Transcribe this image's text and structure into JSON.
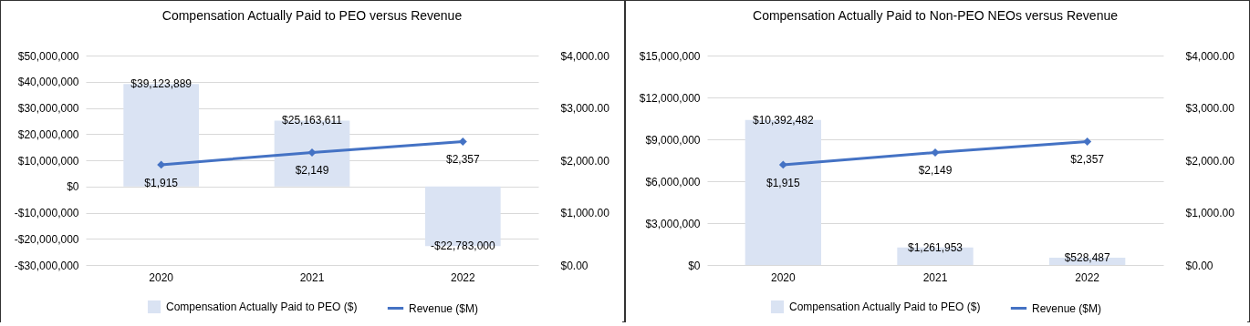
{
  "chart_data": [
    {
      "type": "bar",
      "title": "Compensation Actually Paid to PEO versus Revenue",
      "categories": [
        "2020",
        "2021",
        "2022"
      ],
      "series": [
        {
          "name": "Compensation Actually Paid to PEO ($)",
          "color": "#dae3f3",
          "values": [
            39123889,
            25163611,
            -22783000
          ],
          "value_labels": [
            "$39,123,889",
            "$25,163,611",
            "-$22,783,000"
          ]
        },
        {
          "name": "Revenue ($M)",
          "type": "line",
          "axis": "y2",
          "color": "#4472c4",
          "values": [
            1915,
            2149,
            2357
          ],
          "value_labels": [
            "$1,915",
            "$2,149",
            "$2,357"
          ]
        }
      ],
      "ylim": [
        -30000000,
        50000000
      ],
      "yticks": [
        {
          "value": -30000000,
          "label": "-$30,000,000"
        },
        {
          "value": -20000000,
          "label": "-$20,000,000"
        },
        {
          "value": -10000000,
          "label": "-$10,000,000"
        },
        {
          "value": 0,
          "label": "$0"
        },
        {
          "value": 10000000,
          "label": "$10,000,000"
        },
        {
          "value": 20000000,
          "label": "$20,000,000"
        },
        {
          "value": 30000000,
          "label": "$30,000,000"
        },
        {
          "value": 40000000,
          "label": "$40,000,000"
        },
        {
          "value": 50000000,
          "label": "$50,000,000"
        }
      ],
      "y2lim": [
        0,
        4000
      ],
      "y2ticks": [
        {
          "value": 0,
          "label": "$0.00"
        },
        {
          "value": 1000,
          "label": "$1,000.00"
        },
        {
          "value": 2000,
          "label": "$2,000.00"
        },
        {
          "value": 3000,
          "label": "$3,000.00"
        },
        {
          "value": 4000,
          "label": "$4,000.00"
        }
      ],
      "grid": "y",
      "legend": "bottom",
      "marker": "diamond"
    },
    {
      "type": "bar",
      "title": "Compensation Actually Paid to Non-PEO NEOs versus Revenue",
      "categories": [
        "2020",
        "2021",
        "2022"
      ],
      "series": [
        {
          "name": "Compensation Actually Paid to PEO ($)",
          "color": "#dae3f3",
          "values": [
            10392482,
            1261953,
            528487
          ],
          "value_labels": [
            "$10,392,482",
            "$1,261,953",
            "$528,487"
          ]
        },
        {
          "name": "Revenue ($M)",
          "type": "line",
          "axis": "y2",
          "color": "#4472c4",
          "values": [
            1915,
            2149,
            2357
          ],
          "value_labels": [
            "$1,915",
            "$2,149",
            "$2,357"
          ]
        }
      ],
      "ylim": [
        0,
        15000000
      ],
      "yticks": [
        {
          "value": 0,
          "label": "$0"
        },
        {
          "value": 3000000,
          "label": "$3,000,000"
        },
        {
          "value": 6000000,
          "label": "$6,000,000"
        },
        {
          "value": 9000000,
          "label": "$9,000,000"
        },
        {
          "value": 12000000,
          "label": "$12,000,000"
        },
        {
          "value": 15000000,
          "label": "$15,000,000"
        }
      ],
      "y2lim": [
        0,
        4000
      ],
      "y2ticks": [
        {
          "value": 0,
          "label": "$0.00"
        },
        {
          "value": 1000,
          "label": "$1,000.00"
        },
        {
          "value": 2000,
          "label": "$2,000.00"
        },
        {
          "value": 3000,
          "label": "$3,000.00"
        },
        {
          "value": 4000,
          "label": "$4,000.00"
        }
      ],
      "grid": "y",
      "legend": "bottom",
      "marker": "diamond"
    }
  ]
}
